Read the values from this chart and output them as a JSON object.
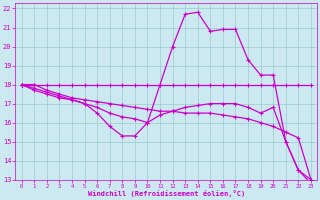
{
  "xlabel": "Windchill (Refroidissement éolien,°C)",
  "bg_color": "#cce8f0",
  "grid_color": "#99cccc",
  "line_color": "#cc00cc",
  "xlim": [
    -0.5,
    23.5
  ],
  "ylim": [
    13,
    22.3
  ],
  "yticks": [
    13,
    14,
    15,
    16,
    17,
    18,
    19,
    20,
    21,
    22
  ],
  "xticks": [
    0,
    1,
    2,
    3,
    4,
    5,
    6,
    7,
    8,
    9,
    10,
    11,
    12,
    13,
    14,
    15,
    16,
    17,
    18,
    19,
    20,
    21,
    22,
    23
  ],
  "series": [
    {
      "x": [
        0,
        1,
        2,
        3,
        4,
        5,
        6,
        7,
        8,
        9,
        10,
        11,
        12,
        13,
        14,
        15,
        16,
        17,
        18,
        19,
        20,
        21,
        22,
        23
      ],
      "y": [
        18,
        18,
        18,
        18,
        18,
        18,
        18,
        18,
        18,
        18,
        18,
        18,
        18,
        18,
        18,
        18,
        18,
        18,
        18,
        18,
        18,
        18,
        18,
        18
      ]
    },
    {
      "x": [
        0,
        1,
        2,
        3,
        4,
        5,
        6,
        7,
        8,
        9,
        10,
        11,
        12,
        13,
        14,
        15,
        16,
        17,
        18,
        19,
        20,
        21,
        22,
        23
      ],
      "y": [
        18,
        18,
        17.7,
        17.5,
        17.3,
        17.2,
        17.1,
        17.0,
        16.9,
        16.8,
        16.7,
        16.6,
        16.6,
        16.5,
        16.5,
        16.5,
        16.4,
        16.3,
        16.2,
        16.0,
        15.8,
        15.5,
        15.2,
        13.0
      ]
    },
    {
      "x": [
        0,
        1,
        2,
        3,
        4,
        5,
        6,
        7,
        8,
        9,
        10,
        11,
        12,
        13,
        14,
        15,
        16,
        17,
        18,
        19,
        20,
        21,
        22,
        23
      ],
      "y": [
        18,
        17.7,
        17.5,
        17.3,
        17.2,
        17.0,
        16.5,
        15.8,
        15.3,
        15.3,
        16.0,
        16.4,
        16.6,
        16.8,
        16.9,
        17.0,
        17.0,
        17.0,
        16.8,
        16.5,
        16.8,
        15.0,
        13.5,
        13.0
      ]
    },
    {
      "x": [
        0,
        1,
        2,
        3,
        4,
        5,
        6,
        7,
        8,
        9,
        10,
        11,
        12,
        13,
        14,
        15,
        16,
        17,
        18,
        19,
        20,
        21,
        22,
        23
      ],
      "y": [
        18,
        17.8,
        17.6,
        17.4,
        17.2,
        17.0,
        16.8,
        16.5,
        16.3,
        16.2,
        16.0,
        18.0,
        20.0,
        21.7,
        21.8,
        20.8,
        20.9,
        20.9,
        19.3,
        18.5,
        18.5,
        15.0,
        13.5,
        12.8
      ]
    }
  ]
}
